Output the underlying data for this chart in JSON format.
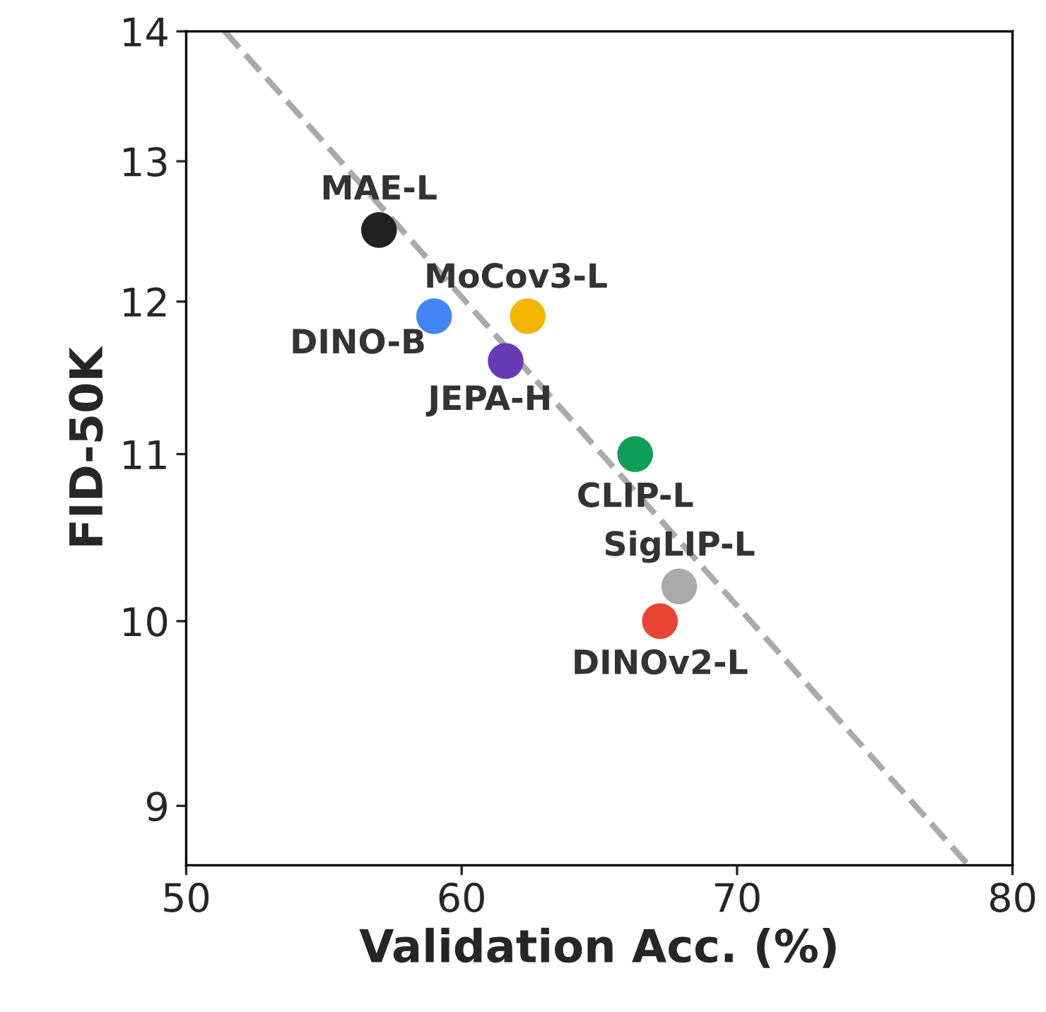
{
  "chart_data": {
    "type": "scatter",
    "xlabel": "Validation Acc. (%)",
    "ylabel": "FID-50K",
    "log": "y",
    "xlim": [
      50,
      80
    ],
    "xticks": [
      50,
      60,
      70,
      80
    ],
    "ylim": [
      8.7,
      14
    ],
    "yticks": [
      9,
      10,
      11,
      12,
      13,
      14
    ],
    "grid": false,
    "legend": false,
    "marker": "circle",
    "series": [
      {
        "name": "MAE-L",
        "color": "#222222",
        "x": [
          57.0
        ],
        "values": [
          12.5
        ]
      },
      {
        "name": "DINO-B",
        "color": "#4285f4",
        "x": [
          59.0
        ],
        "values": [
          11.9
        ]
      },
      {
        "name": "MoCov3-L",
        "color": "#f4b400",
        "x": [
          62.4
        ],
        "values": [
          11.9
        ]
      },
      {
        "name": "JEPA-H",
        "color": "#673ab7",
        "x": [
          61.6
        ],
        "values": [
          11.6
        ]
      },
      {
        "name": "CLIP-L",
        "color": "#0f9d58",
        "x": [
          66.3
        ],
        "values": [
          11.0
        ]
      },
      {
        "name": "SigLIP-L",
        "color": "#aaaaaa",
        "x": [
          67.9
        ],
        "values": [
          10.2
        ]
      },
      {
        "name": "DINOv2-L",
        "color": "#ea4335",
        "x": [
          67.2
        ],
        "values": [
          10.0
        ]
      },
      {
        "type": "line",
        "color": "#aaaaaa",
        "line_style": "dashed",
        "marker": "none",
        "x": [
          51.4,
          78.4
        ],
        "values": [
          14,
          8.7
        ]
      }
    ]
  }
}
